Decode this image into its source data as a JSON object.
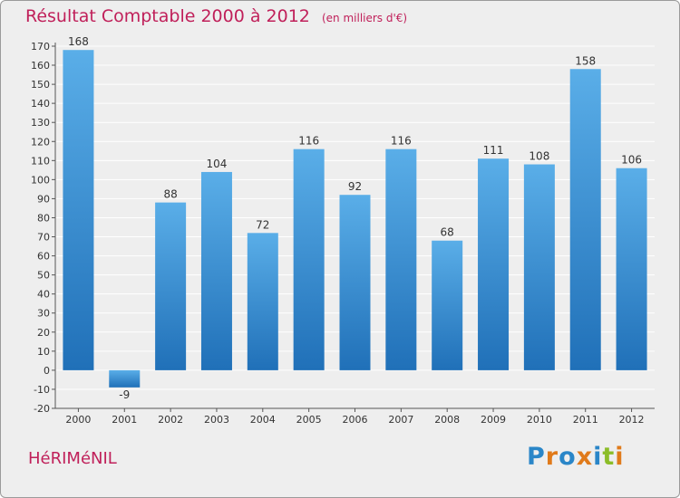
{
  "header": {
    "title": "Résultat Comptable 2000 à 2012",
    "subtitle": "(en milliers d'€)"
  },
  "footer": {
    "commune": "HéRIMéNIL",
    "logo_text": "Proxiti"
  },
  "colors": {
    "title": "#c0205a",
    "bar_top": "#5aaee8",
    "bar_bottom": "#2070b8",
    "background": "#eeeeee",
    "grid": "#ffffff",
    "logo": [
      "#2a86c8",
      "#e07a1a",
      "#2a86c8",
      "#e07a1a",
      "#2a86c8",
      "#8cbd28",
      "#e07a1a"
    ]
  },
  "chart_data": {
    "type": "bar",
    "categories": [
      "2000",
      "2001",
      "2002",
      "2003",
      "2004",
      "2005",
      "2006",
      "2007",
      "2008",
      "2009",
      "2010",
      "2011",
      "2012"
    ],
    "values": [
      168,
      -9,
      88,
      104,
      72,
      116,
      92,
      116,
      68,
      111,
      108,
      158,
      106
    ],
    "data_labels": [
      "168",
      "-9",
      "88",
      "104",
      "72",
      "116",
      "92",
      "116",
      "68",
      "111",
      "108",
      "158",
      "106"
    ],
    "ylim": [
      -20,
      170
    ],
    "yticks": [
      -20,
      -10,
      0,
      10,
      20,
      30,
      40,
      50,
      60,
      70,
      80,
      90,
      100,
      110,
      120,
      130,
      140,
      150,
      160,
      170
    ],
    "grid": true,
    "legend": "none"
  }
}
